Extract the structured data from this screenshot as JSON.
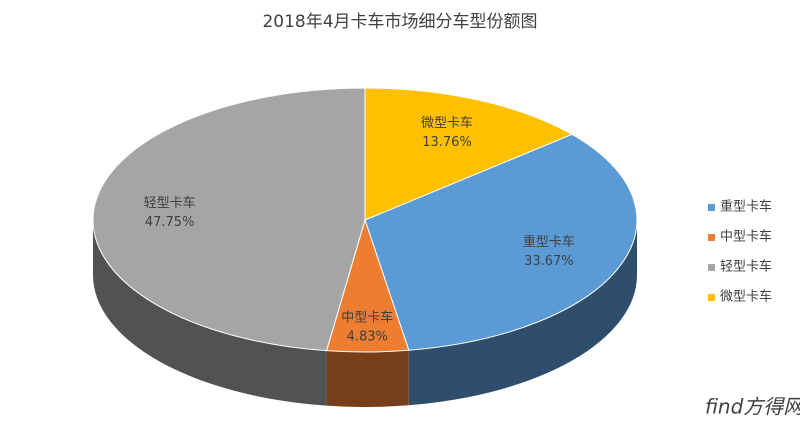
{
  "chart_data": {
    "type": "pie3d",
    "title": "2018年4月卡车市场细分车型份额图",
    "categories": [
      "重型卡车",
      "中型卡车",
      "轻型卡车",
      "微型卡车"
    ],
    "values": [
      33.67,
      4.83,
      47.75,
      13.76
    ],
    "value_labels": [
      "33.67%",
      "4.83%",
      "47.75%",
      "13.76%"
    ],
    "colors": [
      "#5b9bd5",
      "#ed7d31",
      "#a5a5a5",
      "#ffc000"
    ],
    "legend": "right"
  },
  "watermark": "find方得网"
}
